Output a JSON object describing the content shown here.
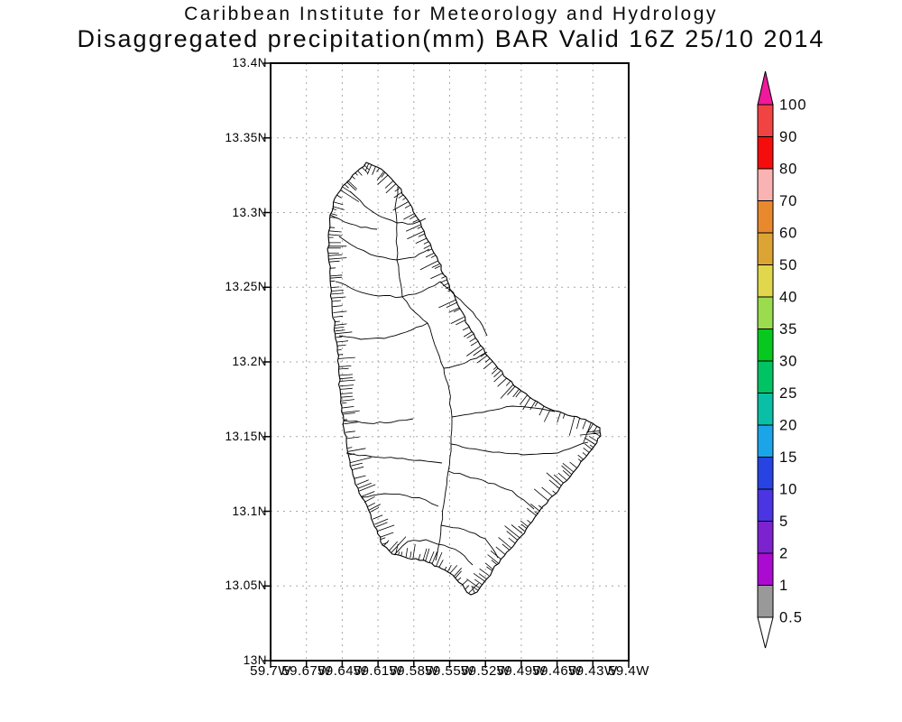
{
  "header": {
    "line1": "Caribbean Institute for Meteorology and Hydrology",
    "line2": "Disaggregated precipitation(mm) BAR Valid 16Z 25/10 2014"
  },
  "map": {
    "lat_axis": {
      "labels": [
        "13.4N",
        "13.35N",
        "13.3N",
        "13.25N",
        "13.2N",
        "13.15N",
        "13.1N",
        "13.05N",
        "13N"
      ]
    },
    "lon_axis": {
      "labels": [
        "59.7W",
        "59.67W",
        "59.64W",
        "59.61W",
        "59.58W",
        "59.55W",
        "59.52W",
        "59.49W",
        "59.46W",
        "59.43W",
        "59.4W"
      ]
    },
    "grid_color": "#a8a8a8",
    "coast_color": "#000000",
    "frame_color": "#000000"
  },
  "colorbar": {
    "unit": "mm",
    "labels": [
      "100",
      "90",
      "80",
      "70",
      "60",
      "50",
      "40",
      "35",
      "30",
      "25",
      "20",
      "15",
      "10",
      "5",
      "2",
      "1",
      "0.5"
    ],
    "segments_top_to_bottom": [
      "#f24343",
      "#f50c0c",
      "#f9b3b3",
      "#e8892e",
      "#dca433",
      "#e1d74d",
      "#9bdb4e",
      "#06c81e",
      "#00c363",
      "#0abfa5",
      "#1ba5e8",
      "#2744e2",
      "#4b34e2",
      "#7d22cf",
      "#ab0bd0",
      "#999999"
    ],
    "above_max_color": "#f0189c",
    "below_min_color": "#ffffff",
    "outline_color": "#000000"
  }
}
